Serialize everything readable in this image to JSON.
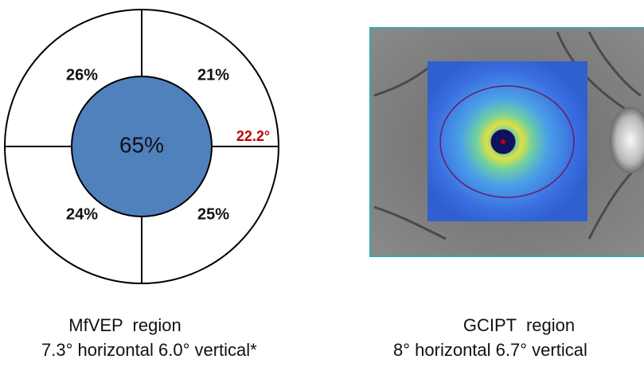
{
  "left_diagram": {
    "quadrants": [
      "26%",
      "21%",
      "24%",
      "25%"
    ],
    "center": "65%",
    "radius_label": "22.2°"
  },
  "captions": [
    {
      "title": "MfVEP  region",
      "detail": "7.3° horizontal 6.0° vertical*"
    },
    {
      "title": "GCIPT  region",
      "detail": "8° horizontal 6.7° vertical"
    }
  ]
}
